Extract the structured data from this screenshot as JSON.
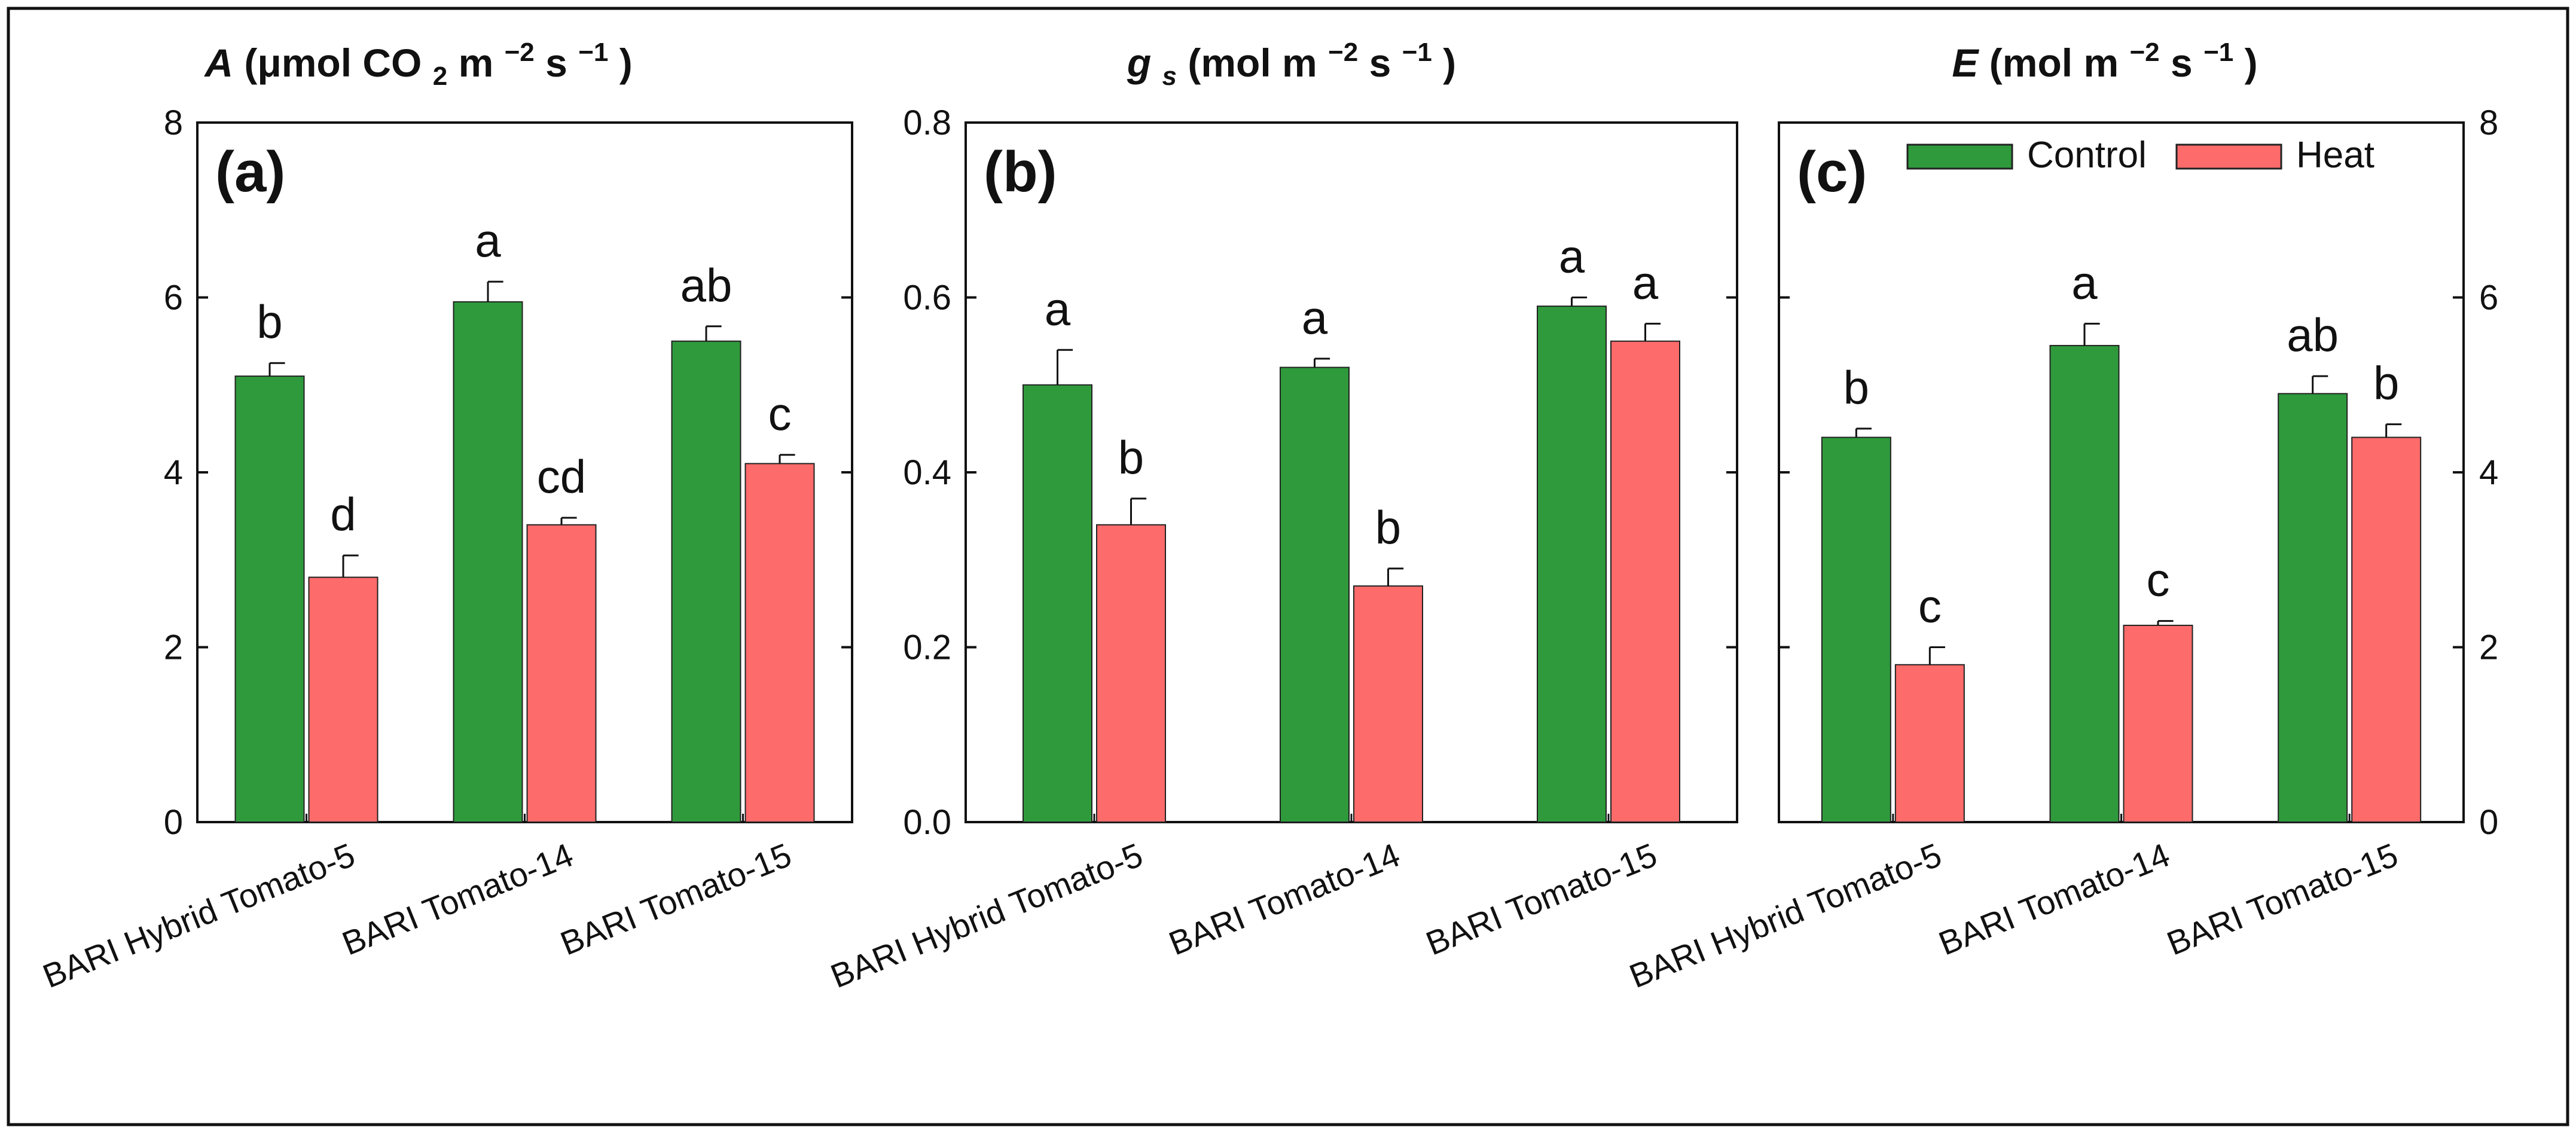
{
  "colors": {
    "control": "#2f9a3c",
    "heat": "#fd6b6b",
    "axis": "#111111",
    "frame": "#111111"
  },
  "legend": {
    "entries": [
      "Control",
      "Heat"
    ],
    "position": "top-right of panel (c)"
  },
  "chart_data": [
    {
      "type": "bar",
      "panel_label": "(a)",
      "title": {
        "var": "A",
        "units": "(μmol CO",
        "sub": "2",
        "after_sub": " m",
        "exp1": "−2",
        "mid": " s",
        "exp2": "−1",
        "close": ")"
      },
      "categories": [
        "BARI Hybrid Tomato-5",
        "BARI Tomato-14",
        "BARI Tomato-15"
      ],
      "series": [
        {
          "name": "Control",
          "values": [
            5.1,
            5.95,
            5.5
          ],
          "errors": [
            0.15,
            0.23,
            0.17
          ],
          "letters": [
            "b",
            "a",
            "ab"
          ]
        },
        {
          "name": "Heat",
          "values": [
            2.8,
            3.4,
            4.1
          ],
          "errors": [
            0.25,
            0.08,
            0.1
          ],
          "letters": [
            "d",
            "cd",
            "c"
          ]
        }
      ],
      "ylim": [
        0,
        8
      ],
      "yticks": [
        0,
        2,
        4,
        6,
        8
      ],
      "ytick_labels": [
        "0",
        "2",
        "4",
        "6",
        "8"
      ],
      "yaxis_side": "left"
    },
    {
      "type": "bar",
      "panel_label": "(b)",
      "title": {
        "var": "g",
        "var_sub": "s",
        "units": " (mol m",
        "exp1": "−2",
        "mid": " s",
        "exp2": "−1",
        "close": ")"
      },
      "categories": [
        "BARI Hybrid Tomato-5",
        "BARI Tomato-14",
        "BARI Tomato-15"
      ],
      "series": [
        {
          "name": "Control",
          "values": [
            0.5,
            0.52,
            0.59
          ],
          "errors": [
            0.04,
            0.01,
            0.01
          ],
          "letters": [
            "a",
            "a",
            "a"
          ]
        },
        {
          "name": "Heat",
          "values": [
            0.34,
            0.27,
            0.55
          ],
          "errors": [
            0.03,
            0.02,
            0.02
          ],
          "letters": [
            "b",
            "b",
            "a"
          ]
        }
      ],
      "ylim": [
        0,
        0.8
      ],
      "yticks": [
        0,
        0.2,
        0.4,
        0.6,
        0.8
      ],
      "ytick_labels": [
        "0.0",
        "0.2",
        "0.4",
        "0.6",
        "0.8"
      ],
      "yaxis_side": "left"
    },
    {
      "type": "bar",
      "panel_label": "(c)",
      "title": {
        "var": "E",
        "units": " (mol m",
        "exp1": "−2",
        "mid": " s",
        "exp2": "−1",
        "close": ")"
      },
      "categories": [
        "BARI Hybrid Tomato-5",
        "BARI Tomato-14",
        "BARI Tomato-15"
      ],
      "series": [
        {
          "name": "Control",
          "values": [
            4.4,
            5.45,
            4.9
          ],
          "errors": [
            0.1,
            0.25,
            0.2
          ],
          "letters": [
            "b",
            "a",
            "ab"
          ]
        },
        {
          "name": "Heat",
          "values": [
            1.8,
            2.25,
            4.4
          ],
          "errors": [
            0.2,
            0.05,
            0.15
          ],
          "letters": [
            "c",
            "c",
            "b"
          ]
        }
      ],
      "ylim": [
        0,
        8
      ],
      "yticks": [
        0,
        2,
        4,
        6,
        8
      ],
      "ytick_labels": [
        "0",
        "2",
        "4",
        "6",
        "8"
      ],
      "yaxis_side": "right"
    }
  ]
}
